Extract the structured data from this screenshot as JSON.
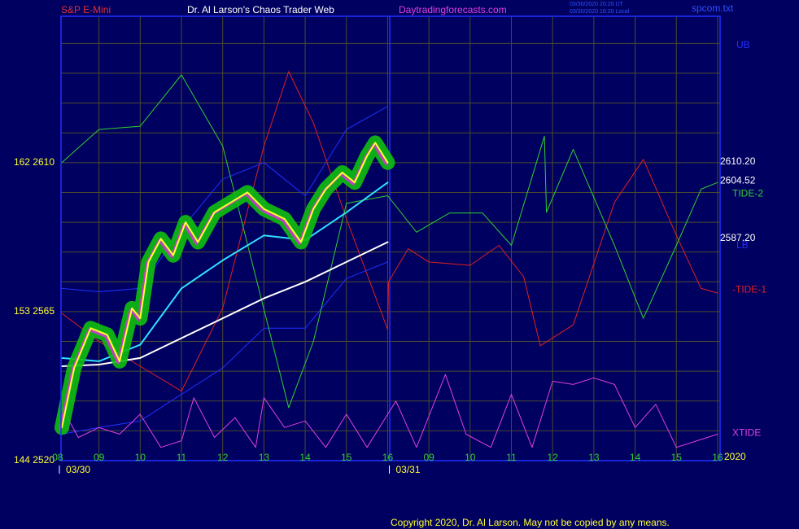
{
  "chart_data": {
    "type": "line",
    "header": {
      "left": "S&P E-Mini",
      "center": "Dr. Al Larson's Chaos Trader Web",
      "site": "Daytradingforecasts.com",
      "stamp1": "03/30/2020 20:20 UT",
      "stamp2": "03/30/2020 16:20 Local",
      "file": "spcom.txt"
    },
    "copyright": "Copyright 2020, Dr. Al Larson. May not be copied by any means.",
    "year_label": "2020",
    "dates": [
      {
        "value": 0.1,
        "label": "03/30"
      },
      {
        "value": 8.1,
        "label": "03/31"
      }
    ],
    "xlim": [
      0.08,
      16.06
    ],
    "xticks": [
      {
        "value": 0,
        "label": "08"
      },
      {
        "value": 1,
        "label": "09"
      },
      {
        "value": 2,
        "label": "10"
      },
      {
        "value": 3,
        "label": "11"
      },
      {
        "value": 4,
        "label": "12"
      },
      {
        "value": 5,
        "label": "13"
      },
      {
        "value": 6,
        "label": "14"
      },
      {
        "value": 7,
        "label": "15"
      },
      {
        "value": 8,
        "label": "16"
      },
      {
        "value": 9,
        "label": "09"
      },
      {
        "value": 10,
        "label": "10"
      },
      {
        "value": 11,
        "label": "11"
      },
      {
        "value": 12,
        "label": "12"
      },
      {
        "value": 13,
        "label": "13"
      },
      {
        "value": 14,
        "label": "14"
      },
      {
        "value": 15,
        "label": "15"
      },
      {
        "value": 16,
        "label": "16"
      }
    ],
    "day_divider": 8.05,
    "ylim": [
      2520,
      2654.2
    ],
    "yticks": [
      {
        "value": 2520,
        "label": "144  2520"
      },
      {
        "value": 2565,
        "label": "153  2565"
      },
      {
        "value": 2610,
        "label": "162  2610"
      }
    ],
    "yminor": [
      2529,
      2538,
      2547,
      2556,
      2574,
      2583,
      2592,
      2601,
      2619,
      2628,
      2637,
      2646
    ],
    "grid": true,
    "right_labels": [
      {
        "value": 2610.2,
        "label": "2610.20"
      },
      {
        "value": 2604.52,
        "label": "2604.52"
      },
      {
        "value": 2587.2,
        "label": "2587.20"
      }
    ],
    "series": [
      {
        "name": "UB",
        "color": "#2030ff",
        "x": [
          0.1,
          1,
          2,
          3,
          4,
          5,
          6,
          7,
          8
        ],
        "values": [
          2572,
          2571,
          2572,
          2590,
          2605,
          2610,
          2600,
          2620,
          2627
        ]
      },
      {
        "name": "LB",
        "color": "#2030ff",
        "x": [
          0.1,
          1,
          2,
          3,
          4,
          5,
          6,
          7,
          8
        ],
        "values": [
          2528,
          2530,
          2532,
          2540,
          2548,
          2560,
          2560,
          2575,
          2580
        ]
      },
      {
        "name": "-TIDE-1",
        "color": "#e02020",
        "x": [
          0.1,
          1,
          2,
          3,
          4,
          5,
          5.6,
          6.2,
          7,
          8,
          8.02,
          8.5,
          9,
          10,
          10.7,
          11.3,
          11.7,
          12.5,
          13.5,
          14.2,
          15,
          15.6,
          16
        ],
        "values": [
          2564.5,
          2556,
          2548.5,
          2541,
          2566,
          2615,
          2637.5,
          2622,
          2593,
          2559.6,
          2574,
          2584,
          2580,
          2579,
          2585,
          2575.5,
          2554.7,
          2561,
          2598,
          2611,
          2588,
          2572,
          2570.6
        ]
      },
      {
        "name": "TIDE-2",
        "color": "#30d030",
        "x": [
          0.1,
          1,
          2,
          3,
          4,
          5,
          5.6,
          6.2,
          7,
          8,
          8.7,
          9.5,
          10.3,
          11,
          11.8,
          11.85,
          12.5,
          13.5,
          14.2,
          15,
          15.6,
          16
        ],
        "values": [
          2610,
          2620,
          2621,
          2636.5,
          2615,
          2565.7,
          2536,
          2556,
          2597.7,
          2600,
          2589,
          2594.8,
          2594.8,
          2585,
          2618,
          2595,
          2614,
          2585,
          2563,
          2585,
          2602,
          2604
        ]
      },
      {
        "name": "XTIDE",
        "color": "#e040e0",
        "x": [
          0.1,
          0.5,
          1,
          1.5,
          2,
          2.5,
          3,
          3.3,
          3.8,
          4.3,
          4.8,
          5,
          5.5,
          6,
          6.5,
          7,
          7.5,
          8.2,
          8.7,
          9.4,
          9.9,
          10.5,
          11,
          11.5,
          12,
          12.5,
          13,
          13.5,
          14,
          14.5,
          15,
          15.5,
          16
        ],
        "values": [
          2536,
          2527,
          2530,
          2528,
          2534,
          2524,
          2526,
          2539,
          2527,
          2533,
          2524,
          2539,
          2530,
          2532,
          2524,
          2534,
          2524,
          2538,
          2524,
          2546,
          2528,
          2524,
          2540,
          2524,
          2544,
          2543,
          2545,
          2543,
          2530,
          2537,
          2524,
          2526,
          2528
        ]
      },
      {
        "color": "#ffffff",
        "x": [
          0.1,
          1,
          2,
          3,
          4,
          5,
          6,
          7,
          8
        ],
        "values": [
          2548.5,
          2549,
          2551,
          2557,
          2563,
          2569,
          2574,
          2580,
          2586
        ]
      },
      {
        "color": "#30e0ff",
        "x": [
          0.1,
          1,
          2,
          3,
          4,
          5,
          6,
          7,
          8
        ],
        "values": [
          2551,
          2550,
          2555,
          2572,
          2580.5,
          2588,
          2586.6,
          2595,
          2604
        ]
      },
      {
        "color": "#ffff30",
        "glow": "#10c010",
        "x": [
          0.1,
          0.4,
          0.8,
          1.2,
          1.5,
          1.8,
          2,
          2.2,
          2.5,
          2.8,
          3.1,
          3.4,
          3.8,
          4.2,
          4.6,
          5,
          5.5,
          5.9,
          6.2,
          6.5,
          6.9,
          7.2,
          7.5,
          7.7,
          8
        ],
        "values": [
          2530,
          2548,
          2560,
          2558,
          2550,
          2566,
          2563,
          2580,
          2587,
          2582,
          2592,
          2586,
          2595,
          2598,
          2601,
          2596,
          2593,
          2586,
          2596,
          2602,
          2607,
          2604,
          2612,
          2616,
          2610
        ]
      }
    ]
  }
}
